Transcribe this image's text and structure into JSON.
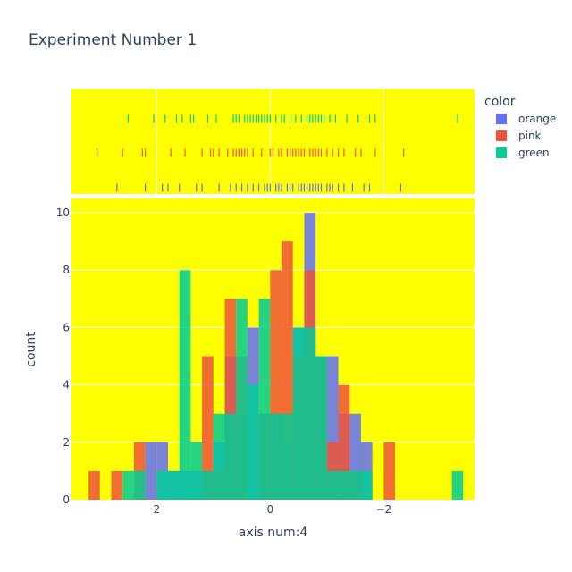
{
  "chart_data": {
    "type": "bar",
    "title": "Experiment Number 1",
    "xlabel": "axis num:4",
    "ylabel": "count",
    "x_reversed": true,
    "xlim": [
      3.5,
      -3.6
    ],
    "ylim": [
      0,
      10.5
    ],
    "x_ticks": [
      2,
      0,
      -2
    ],
    "x_tick_labels": [
      "2",
      "0",
      "−2"
    ],
    "y_ticks": [
      0,
      2,
      4,
      6,
      8,
      10
    ],
    "y_tick_labels": [
      "0",
      "2",
      "4",
      "6",
      "8",
      "10"
    ],
    "bin_width": 0.2,
    "bar_opacity": 0.85,
    "grid": true,
    "plot_background": "#ffff00",
    "grid_color": "#ffffff",
    "legend": {
      "title": "color",
      "placement": "right",
      "items": [
        {
          "name": "orange",
          "color": "#636efa"
        },
        {
          "name": "pink",
          "color": "#ef553b"
        },
        {
          "name": "green",
          "color": "#00cc96"
        }
      ]
    },
    "series": [
      {
        "name": "orange",
        "color": "#636efa",
        "bins": [
          [
            2.0,
            2
          ],
          [
            1.8,
            2
          ],
          [
            1.6,
            1
          ],
          [
            1.4,
            1
          ],
          [
            1.2,
            1
          ],
          [
            1.0,
            1
          ],
          [
            0.8,
            2
          ],
          [
            0.6,
            5
          ],
          [
            0.4,
            3
          ],
          [
            0.2,
            6
          ],
          [
            0.0,
            3
          ],
          [
            -0.2,
            3
          ],
          [
            -0.4,
            2
          ],
          [
            -0.6,
            6
          ],
          [
            -0.8,
            10
          ],
          [
            -1.0,
            5
          ],
          [
            -1.2,
            5
          ],
          [
            -1.4,
            3
          ],
          [
            -1.6,
            3
          ],
          [
            -1.8,
            2
          ]
        ],
        "rug": [
          2.7,
          2.2,
          1.9,
          1.8,
          1.6,
          1.3,
          1.2,
          0.9,
          0.7,
          0.6,
          0.5,
          0.4,
          0.3,
          0.2,
          0.1,
          0.05,
          0.0,
          -0.1,
          -0.15,
          -0.2,
          -0.3,
          -0.35,
          -0.4,
          -0.5,
          -0.55,
          -0.6,
          -0.65,
          -0.7,
          -0.75,
          -0.8,
          -0.85,
          -0.9,
          -1.0,
          -1.05,
          -1.1,
          -1.2,
          -1.3,
          -1.45,
          -1.65,
          -1.75,
          -2.3
        ]
      },
      {
        "name": "pink",
        "color": "#ef553b",
        "bins": [
          [
            3.0,
            1
          ],
          [
            2.6,
            1
          ],
          [
            2.2,
            2
          ],
          [
            1.0,
            5
          ],
          [
            0.8,
            1
          ],
          [
            0.6,
            7
          ],
          [
            0.4,
            5
          ],
          [
            0.0,
            3
          ],
          [
            -0.2,
            8
          ],
          [
            -0.4,
            9
          ],
          [
            -0.6,
            5
          ],
          [
            -0.8,
            8
          ],
          [
            -1.0,
            5
          ],
          [
            -1.2,
            2
          ],
          [
            -1.4,
            4
          ],
          [
            -1.6,
            1
          ],
          [
            -2.2,
            2
          ]
        ],
        "rug": [
          3.05,
          2.6,
          2.25,
          2.2,
          1.75,
          1.5,
          1.2,
          1.05,
          1.0,
          0.9,
          0.75,
          0.65,
          0.6,
          0.55,
          0.5,
          0.45,
          0.4,
          0.3,
          0.15,
          0.0,
          -0.05,
          -0.15,
          -0.2,
          -0.3,
          -0.35,
          -0.4,
          -0.45,
          -0.5,
          -0.55,
          -0.6,
          -0.7,
          -0.75,
          -0.8,
          -0.85,
          -0.9,
          -1.0,
          -1.1,
          -1.2,
          -1.3,
          -1.5,
          -1.6,
          -1.85,
          -2.35
        ]
      },
      {
        "name": "green",
        "color": "#00cc96",
        "bins": [
          [
            2.4,
            1
          ],
          [
            2.2,
            1
          ],
          [
            1.8,
            1
          ],
          [
            1.6,
            1
          ],
          [
            1.4,
            8
          ],
          [
            1.2,
            2
          ],
          [
            1.0,
            1
          ],
          [
            0.8,
            3
          ],
          [
            0.6,
            3
          ],
          [
            0.4,
            7
          ],
          [
            0.2,
            4
          ],
          [
            0.0,
            7
          ],
          [
            -0.2,
            3
          ],
          [
            -0.4,
            3
          ],
          [
            -0.6,
            6
          ],
          [
            -0.8,
            6
          ],
          [
            -1.0,
            5
          ],
          [
            -1.2,
            1
          ],
          [
            -1.4,
            1
          ],
          [
            -1.6,
            1
          ],
          [
            -1.8,
            1
          ],
          [
            -3.4,
            1
          ]
        ],
        "rug": [
          2.5,
          2.05,
          1.85,
          1.65,
          1.55,
          1.4,
          1.35,
          1.1,
          0.95,
          0.65,
          0.6,
          0.55,
          0.45,
          0.4,
          0.35,
          0.3,
          0.25,
          0.2,
          0.15,
          0.1,
          0.05,
          0.0,
          -0.1,
          -0.2,
          -0.25,
          -0.35,
          -0.45,
          -0.55,
          -0.65,
          -0.7,
          -0.75,
          -0.8,
          -0.85,
          -0.9,
          -0.95,
          -1.05,
          -1.15,
          -1.35,
          -1.55,
          -1.75,
          -1.85,
          -3.3
        ]
      }
    ]
  }
}
